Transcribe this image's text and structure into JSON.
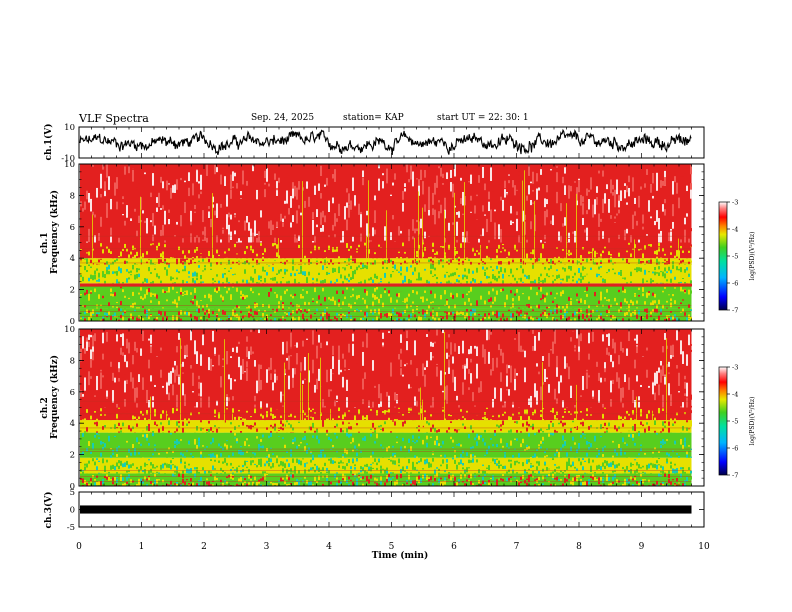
{
  "header": {
    "title": "VLF Spectra",
    "date": "Sep. 24, 2025",
    "station": "station= KAP",
    "start_ut": "start  UT  =   22: 30: 1"
  },
  "colors": {
    "waveform": "#000000",
    "spec_base": "#e3201f",
    "spec_light": "#f05a55",
    "spec_white": "#fbe4e4",
    "spec_yellow": "#e6e000",
    "spec_green": "#58ce1e",
    "spec_cyan": "#17cdb4",
    "spec_blue": "#0000d8"
  },
  "chart_data": [
    {
      "type": "line",
      "id": "ch1-waveform",
      "ylabel": "ch.1(V)",
      "ylim": [
        -10,
        10
      ],
      "yticks": [
        "10",
        "-10"
      ],
      "xlim": [
        0,
        10
      ],
      "description_values": {
        "trace_min": -8,
        "trace_max": 8,
        "trace_end_min": 9.8
      }
    },
    {
      "type": "heatmap",
      "id": "ch1-spectrogram",
      "ylabel": "ch.1",
      "ylabel2": "Frequency  (kHz)",
      "ylim": [
        0,
        10
      ],
      "yticks": [
        "0",
        "2",
        "4",
        "6",
        "8",
        "10"
      ],
      "xlim": [
        0,
        10
      ],
      "data_end_min": 9.8,
      "bands": [
        {
          "from": 0.0,
          "to": 0.8,
          "level": "mixed"
        },
        {
          "from": 0.8,
          "to": 2.2,
          "level": "yellow-green"
        },
        {
          "from": 2.2,
          "to": 2.4,
          "level": "red-line"
        },
        {
          "from": 2.4,
          "to": 3.6,
          "level": "green"
        },
        {
          "from": 3.6,
          "to": 4.0,
          "level": "yellow"
        },
        {
          "from": 4.0,
          "to": 5.0,
          "level": "red-yellow"
        },
        {
          "from": 5.0,
          "to": 10.0,
          "level": "red-white"
        }
      ],
      "colorbar": {
        "label": "log(PSD)(V²/Hz)",
        "ticks": [
          "-3",
          "-4",
          "-5",
          "-6",
          "-7"
        ],
        "range": [
          -7,
          -3
        ]
      }
    },
    {
      "type": "heatmap",
      "id": "ch2-spectrogram",
      "ylabel": "ch.2",
      "ylabel2": "Frequency  (kHz)",
      "ylim": [
        0,
        10
      ],
      "yticks": [
        "0",
        "2",
        "4",
        "6",
        "8",
        "10"
      ],
      "xlim": [
        0,
        10
      ],
      "data_end_min": 9.8,
      "bands": [
        {
          "from": 0.0,
          "to": 0.8,
          "level": "mixed"
        },
        {
          "from": 0.8,
          "to": 1.8,
          "level": "green"
        },
        {
          "from": 1.8,
          "to": 3.4,
          "level": "cyan-green"
        },
        {
          "from": 3.4,
          "to": 4.2,
          "level": "yellow"
        },
        {
          "from": 4.2,
          "to": 5.0,
          "level": "red-yellow"
        },
        {
          "from": 5.0,
          "to": 10.0,
          "level": "red-white"
        }
      ],
      "colorbar": {
        "label": "log(PSD)(V²/Hz)",
        "ticks": [
          "-3",
          "-4",
          "-5",
          "-6",
          "-7"
        ],
        "range": [
          -7,
          -3
        ]
      }
    },
    {
      "type": "line",
      "id": "ch3-waveform",
      "ylabel": "ch.3(V)",
      "ylim": [
        -5,
        5
      ],
      "yticks": [
        "5",
        "0",
        "-5"
      ],
      "xlim": [
        0,
        10
      ],
      "band_from": -0.3,
      "band_to": 0.3,
      "data_end_min": 9.8
    }
  ],
  "xaxis": {
    "label": "Time  (min)",
    "ticks": [
      "0",
      "1",
      "2",
      "3",
      "4",
      "5",
      "6",
      "7",
      "8",
      "9",
      "10"
    ]
  }
}
